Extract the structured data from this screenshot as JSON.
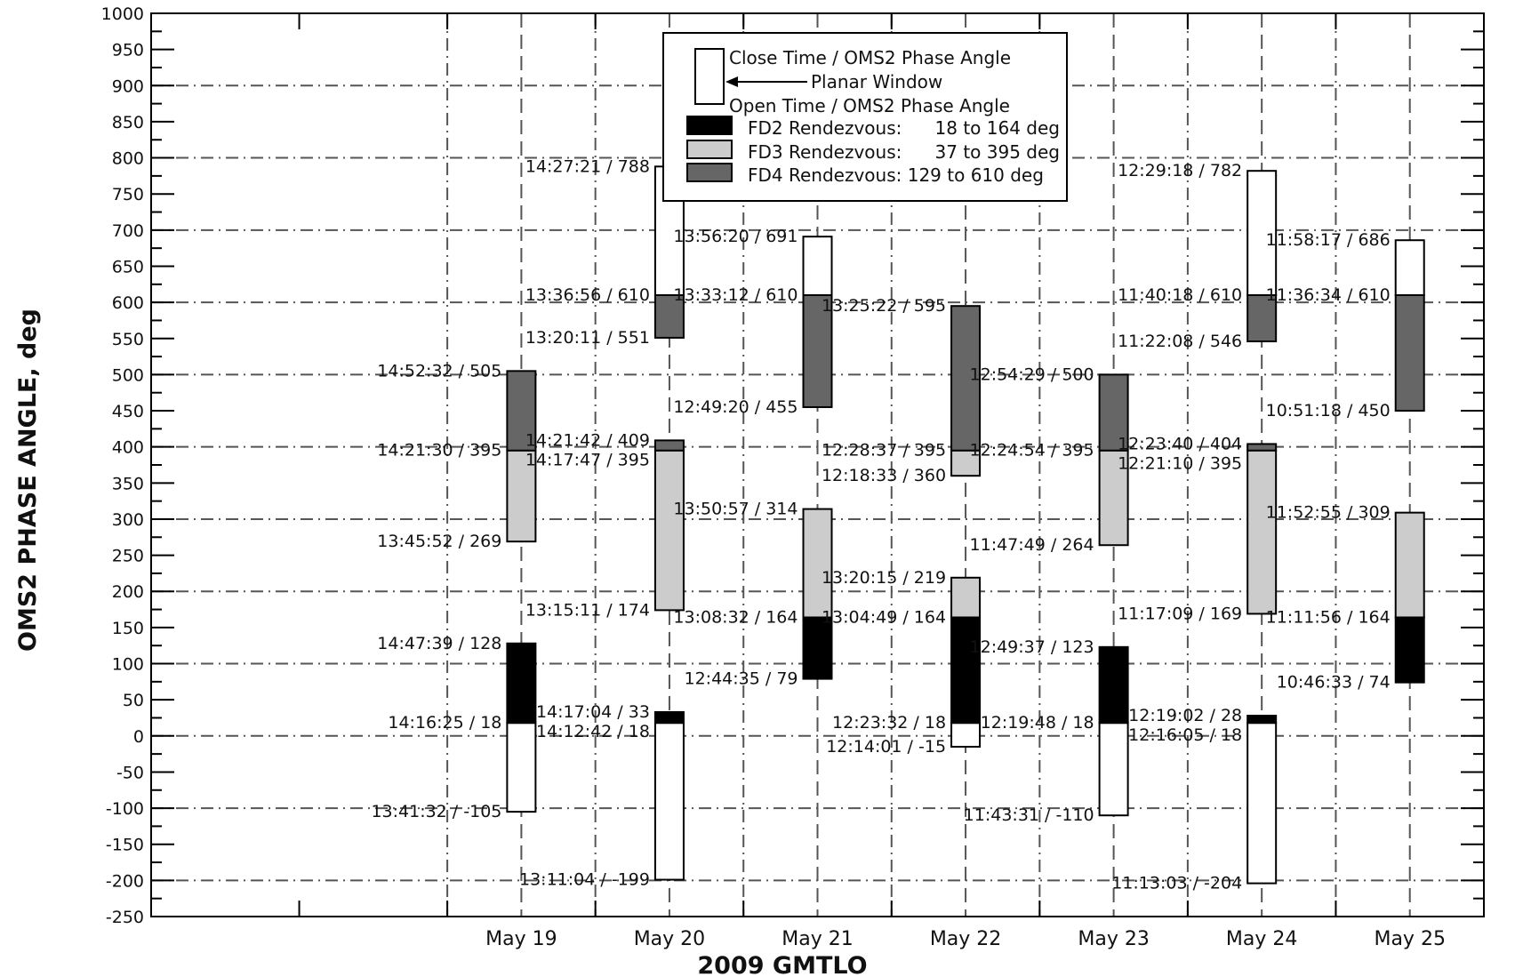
{
  "chart_data": {
    "type": "floating-bar",
    "xlabel": "2009 GMTLO",
    "ylabel": "OMS2 PHASE ANGLE, deg",
    "ylim": [
      -250,
      1000
    ],
    "y_ticks": [
      "1000",
      "950",
      "900",
      "850",
      "800",
      "750",
      "700",
      "650",
      "600",
      "550",
      "500",
      "450",
      "400",
      "350",
      "300",
      "250",
      "200",
      "150",
      "100",
      "50",
      "0",
      "-50",
      "-100",
      "-150",
      "-200",
      "-250"
    ],
    "y_tick_values": [
      1000,
      950,
      900,
      850,
      800,
      750,
      700,
      650,
      600,
      550,
      500,
      450,
      400,
      350,
      300,
      250,
      200,
      150,
      100,
      50,
      0,
      -50,
      -100,
      -150,
      -200,
      -250
    ],
    "categories": [
      "May 19",
      "May 20",
      "May 21",
      "May 22",
      "May 23",
      "May 24",
      "May 25"
    ],
    "grid": true,
    "legend_position": "top-center",
    "legend": {
      "planar_close": "Close Time / OMS2 Phase Angle",
      "planar_label": "Planar Window",
      "planar_open": "Open Time / OMS2 Phase Angle",
      "fd2_name": "FD2 Rendezvous:",
      "fd2_range": "18 to 164 deg",
      "fd3_name": "FD3 Rendezvous:",
      "fd3_range": "37 to 395 deg",
      "fd4_name": "FD4 Rendezvous: 129 to 610 deg"
    },
    "colors": {
      "planar": "#ffffff",
      "fd2": "#000000",
      "fd3": "#cccccc",
      "fd4": "#666666",
      "grid": "#555555"
    },
    "windows": [
      {
        "day": "May 19",
        "segments": [
          {
            "type": "planar",
            "lo": -105,
            "hi": 18
          },
          {
            "type": "fd2",
            "lo": 18,
            "hi": 128
          },
          {
            "type": "fd3",
            "lo": 269,
            "hi": 395
          },
          {
            "type": "fd4",
            "lo": 395,
            "hi": 505
          }
        ]
      },
      {
        "day": "May 20",
        "segments": [
          {
            "type": "planar",
            "lo": -199,
            "hi": 18
          },
          {
            "type": "fd2",
            "lo": 18,
            "hi": 33
          },
          {
            "type": "fd3",
            "lo": 174,
            "hi": 395
          },
          {
            "type": "fd4",
            "lo": 395,
            "hi": 409
          },
          {
            "type": "fd4",
            "lo": 551,
            "hi": 610
          },
          {
            "type": "planar",
            "lo": 610,
            "hi": 788
          }
        ]
      },
      {
        "day": "May 21",
        "segments": [
          {
            "type": "fd2",
            "lo": 79,
            "hi": 164
          },
          {
            "type": "fd3",
            "lo": 164,
            "hi": 314
          },
          {
            "type": "fd4",
            "lo": 455,
            "hi": 610
          },
          {
            "type": "planar",
            "lo": 610,
            "hi": 691
          }
        ]
      },
      {
        "day": "May 22",
        "segments": [
          {
            "type": "planar",
            "lo": -15,
            "hi": 18
          },
          {
            "type": "fd2",
            "lo": 18,
            "hi": 164
          },
          {
            "type": "fd3",
            "lo": 164,
            "hi": 219
          },
          {
            "type": "fd3",
            "lo": 360,
            "hi": 395
          },
          {
            "type": "fd4",
            "lo": 395,
            "hi": 595
          }
        ]
      },
      {
        "day": "May 23",
        "segments": [
          {
            "type": "planar",
            "lo": -110,
            "hi": 18
          },
          {
            "type": "fd2",
            "lo": 18,
            "hi": 123
          },
          {
            "type": "fd3",
            "lo": 264,
            "hi": 395
          },
          {
            "type": "fd4",
            "lo": 395,
            "hi": 500
          }
        ]
      },
      {
        "day": "May 24",
        "segments": [
          {
            "type": "planar",
            "lo": -204,
            "hi": 18
          },
          {
            "type": "fd2",
            "lo": 18,
            "hi": 28
          },
          {
            "type": "fd3",
            "lo": 169,
            "hi": 395
          },
          {
            "type": "fd4",
            "lo": 395,
            "hi": 404
          },
          {
            "type": "fd4",
            "lo": 546,
            "hi": 610
          },
          {
            "type": "planar",
            "lo": 610,
            "hi": 782
          }
        ]
      },
      {
        "day": "May 25",
        "segments": [
          {
            "type": "fd2",
            "lo": 74,
            "hi": 164
          },
          {
            "type": "fd3",
            "lo": 164,
            "hi": 309
          },
          {
            "type": "fd4",
            "lo": 450,
            "hi": 610
          },
          {
            "type": "planar",
            "lo": 610,
            "hi": 686
          }
        ]
      }
    ],
    "annotations": [
      {
        "day": "May 19",
        "text": "14:52:32 / 505",
        "value": 505
      },
      {
        "day": "May 19",
        "text": "14:21:30 / 395",
        "value": 395
      },
      {
        "day": "May 19",
        "text": "13:45:52 / 269",
        "value": 269
      },
      {
        "day": "May 19",
        "text": "14:47:39 / 128",
        "value": 128
      },
      {
        "day": "May 19",
        "text": "14:16:25 / 18",
        "value": 18
      },
      {
        "day": "May 19",
        "text": "13:41:32 / -105",
        "value": -105
      },
      {
        "day": "May 20",
        "text": "14:27:21 / 788",
        "value": 788
      },
      {
        "day": "May 20",
        "text": "13:36:56 / 610",
        "value": 610
      },
      {
        "day": "May 20",
        "text": "13:20:11 / 551",
        "value": 551
      },
      {
        "day": "May 20",
        "text": "14:21:42 / 409",
        "value": 409
      },
      {
        "day": "May 20",
        "text": "14:17:47 / 395",
        "value": 395
      },
      {
        "day": "May 20",
        "text": "13:15:11 / 174",
        "value": 174
      },
      {
        "day": "May 20",
        "text": "14:17:04 / 33",
        "value": 33
      },
      {
        "day": "May 20",
        "text": "14:12:42 / 18",
        "value": 18
      },
      {
        "day": "May 20",
        "text": "13:11:04 / -199",
        "value": -199
      },
      {
        "day": "May 21",
        "text": "13:56:20 / 691",
        "value": 691
      },
      {
        "day": "May 21",
        "text": "13:33:12 / 610",
        "value": 610
      },
      {
        "day": "May 21",
        "text": "12:49:20 / 455",
        "value": 455
      },
      {
        "day": "May 21",
        "text": "13:50:57 / 314",
        "value": 314
      },
      {
        "day": "May 21",
        "text": "13:08:32 / 164",
        "value": 164
      },
      {
        "day": "May 21",
        "text": "12:44:35 / 79",
        "value": 79
      },
      {
        "day": "May 22",
        "text": "13:25:22 / 595",
        "value": 595
      },
      {
        "day": "May 22",
        "text": "12:28:37 / 395",
        "value": 395
      },
      {
        "day": "May 22",
        "text": "12:18:33 / 360",
        "value": 360
      },
      {
        "day": "May 22",
        "text": "13:20:15 / 219",
        "value": 219
      },
      {
        "day": "May 22",
        "text": "13:04:49 / 164",
        "value": 164
      },
      {
        "day": "May 22",
        "text": "12:23:32 / 18",
        "value": 18
      },
      {
        "day": "May 22",
        "text": "12:14:01 / -15",
        "value": -15
      },
      {
        "day": "May 23",
        "text": "12:54:29 / 500",
        "value": 500
      },
      {
        "day": "May 23",
        "text": "12:24:54 / 395",
        "value": 395
      },
      {
        "day": "May 23",
        "text": "11:47:49 / 264",
        "value": 264
      },
      {
        "day": "May 23",
        "text": "12:49:37 / 123",
        "value": 123
      },
      {
        "day": "May 23",
        "text": "12:19:48 / 18",
        "value": 18
      },
      {
        "day": "May 23",
        "text": "11:43:31 / -110",
        "value": -110
      },
      {
        "day": "May 24",
        "text": "12:29:18 / 782",
        "value": 782
      },
      {
        "day": "May 24",
        "text": "11:40:18 / 610",
        "value": 610
      },
      {
        "day": "May 24",
        "text": "11:22:08 / 546",
        "value": 546
      },
      {
        "day": "May 24",
        "text": "12:23:40 / 404",
        "value": 404
      },
      {
        "day": "May 24",
        "text": "12:21:10 / 395",
        "value": 395
      },
      {
        "day": "May 24",
        "text": "11:17:09 / 169",
        "value": 169
      },
      {
        "day": "May 24",
        "text": "12:19:02 / 28",
        "value": 28
      },
      {
        "day": "May 24",
        "text": "12:16:05 / 18",
        "value": 18
      },
      {
        "day": "May 24",
        "text": "11:13:03 / -204",
        "value": -204
      },
      {
        "day": "May 25",
        "text": "11:58:17 / 686",
        "value": 686
      },
      {
        "day": "May 25",
        "text": "11:36:34 / 610",
        "value": 610
      },
      {
        "day": "May 25",
        "text": "10:51:18 / 450",
        "value": 450
      },
      {
        "day": "May 25",
        "text": "11:52:55 / 309",
        "value": 309
      },
      {
        "day": "May 25",
        "text": "11:11:56 / 164",
        "value": 164
      },
      {
        "day": "May 25",
        "text": "10:46:33 / 74",
        "value": 74
      }
    ]
  }
}
